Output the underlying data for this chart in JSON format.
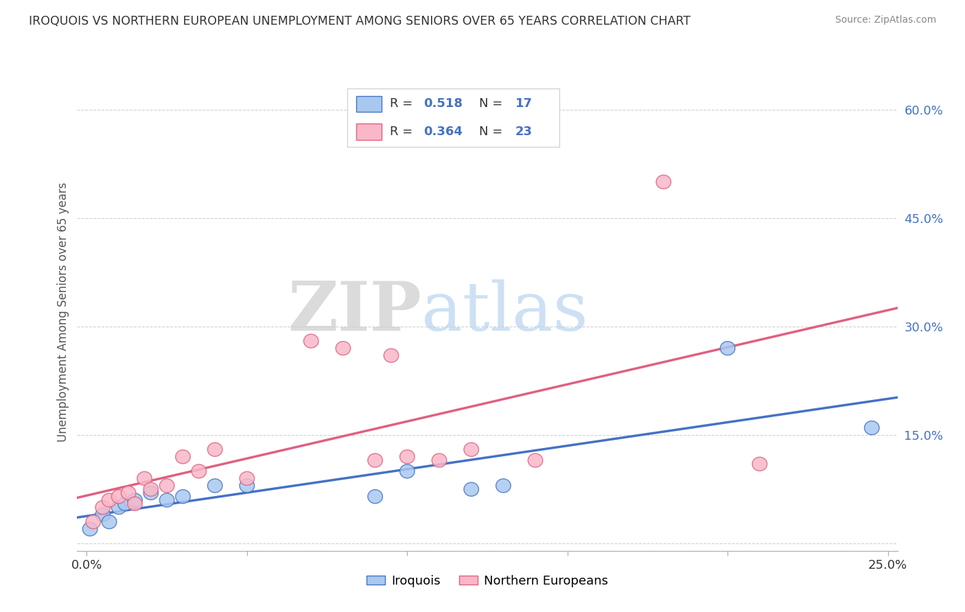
{
  "title": "IROQUOIS VS NORTHERN EUROPEAN UNEMPLOYMENT AMONG SENIORS OVER 65 YEARS CORRELATION CHART",
  "source": "Source: ZipAtlas.com",
  "ylabel": "Unemployment Among Seniors over 65 years",
  "legend_label1": "Iroquois",
  "legend_label2": "Northern Europeans",
  "R1": 0.518,
  "N1": 17,
  "R2": 0.364,
  "N2": 23,
  "color1": "#A8C8F0",
  "color2": "#F8B8C8",
  "line_color1": "#4472C4",
  "line_color2": "#E06080",
  "edge_color1": "#4472C4",
  "edge_color2": "#E06080",
  "xlim": [
    -0.003,
    0.253
  ],
  "ylim": [
    -0.01,
    0.65
  ],
  "xticks": [
    0.0,
    0.05,
    0.1,
    0.15,
    0.2,
    0.25
  ],
  "yticks_right": [
    0.0,
    0.15,
    0.3,
    0.45,
    0.6
  ],
  "ytick_labels_right": [
    "",
    "15.0%",
    "30.0%",
    "45.0%",
    "60.0%"
  ],
  "watermark_zip": "ZIP",
  "watermark_atlas": "atlas",
  "iroquois_x": [
    0.001,
    0.005,
    0.007,
    0.01,
    0.012,
    0.015,
    0.02,
    0.025,
    0.03,
    0.04,
    0.05,
    0.09,
    0.1,
    0.12,
    0.13,
    0.2,
    0.245
  ],
  "iroquois_y": [
    0.02,
    0.04,
    0.03,
    0.05,
    0.055,
    0.06,
    0.07,
    0.06,
    0.065,
    0.08,
    0.08,
    0.065,
    0.1,
    0.075,
    0.08,
    0.27,
    0.16
  ],
  "northern_x": [
    0.002,
    0.005,
    0.007,
    0.01,
    0.013,
    0.015,
    0.018,
    0.02,
    0.025,
    0.03,
    0.035,
    0.04,
    0.05,
    0.07,
    0.08,
    0.09,
    0.095,
    0.1,
    0.11,
    0.12,
    0.14,
    0.18,
    0.21
  ],
  "northern_y": [
    0.03,
    0.05,
    0.06,
    0.065,
    0.07,
    0.055,
    0.09,
    0.075,
    0.08,
    0.12,
    0.1,
    0.13,
    0.09,
    0.28,
    0.27,
    0.115,
    0.26,
    0.12,
    0.115,
    0.13,
    0.115,
    0.5,
    0.11
  ],
  "background_color": "#FFFFFF",
  "grid_color": "#D0D0D0",
  "title_color": "#333333",
  "legend_text_color": "#4472C4"
}
